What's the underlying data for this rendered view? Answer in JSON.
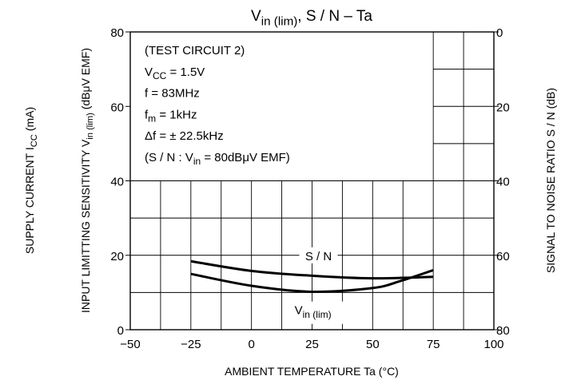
{
  "chart_data": {
    "type": "line",
    "title": {
      "main": "V",
      "sub": "in (lim)",
      "rest": ", S / N  –  Ta"
    },
    "xlabel": "AMBIENT TEMPERATURE    Ta    (°C)",
    "xlim": [
      -50,
      100
    ],
    "x_ticks": [
      "−50",
      "−25",
      "0",
      "25",
      "50",
      "75",
      "100"
    ],
    "y_left": {
      "ylim": [
        0,
        80
      ],
      "ticks": [
        "0",
        "20",
        "40",
        "60",
        "80"
      ],
      "label_supply": {
        "main": "SUPPLY CURRENT    I",
        "sub": "CC",
        "rest": "    (mA)"
      },
      "label_input": {
        "main": "INPUT LIMITTING SENSITIVITY    V",
        "sub": "in (lim)",
        "rest": "    (dBμV EMF)"
      }
    },
    "y_right": {
      "ylim": [
        80,
        0
      ],
      "ticks": [
        "0",
        "20",
        "40",
        "60",
        "80"
      ],
      "label": "SIGNAL TO NOISE RATIO    S / N    (dB)"
    },
    "grid": true,
    "conditions": [
      {
        "main": "(TEST CIRCUIT 2)"
      },
      {
        "main": "V",
        "sub": "CC",
        "rest": " = 1.5V"
      },
      {
        "main": "f = 83MHz"
      },
      {
        "main": "f",
        "sub": "m",
        "rest": " = 1kHz"
      },
      {
        "main": "Δf =  ± 22.5kHz"
      },
      {
        "main": "(S / N  :  V",
        "sub": "in",
        "rest": " = 80dBμV  EMF)"
      }
    ],
    "series": [
      {
        "name": "S / N",
        "axis": "right",
        "x": [
          -25,
          0,
          25,
          50,
          75
        ],
        "y": [
          61.6,
          64.2,
          65.5,
          66.2,
          65.8
        ]
      },
      {
        "name": "V",
        "name_sub": "in (lim)",
        "axis": "left",
        "x": [
          -25,
          0,
          25,
          50,
          62,
          75
        ],
        "y": [
          15,
          11.8,
          10.2,
          11.2,
          13.2,
          16
        ]
      }
    ]
  }
}
